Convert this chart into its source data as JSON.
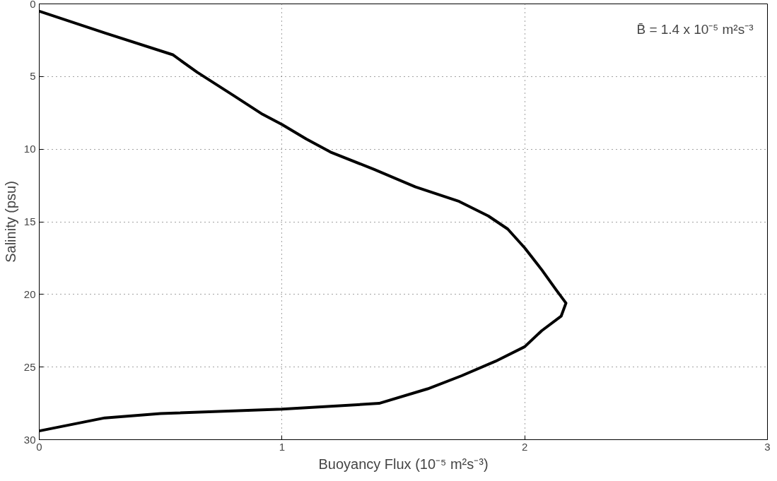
{
  "chart_data": {
    "type": "line",
    "xlabel": "Buoyancy Flux (10⁻⁵ m²s⁻³)",
    "ylabel": "Salinity (psu)",
    "annotations": [
      "B̄ = 1.4 x 10⁻⁵ m²s⁻³"
    ],
    "xlim": [
      0,
      3
    ],
    "ylim": [
      30,
      0
    ],
    "xticks": [
      0,
      1,
      2,
      3
    ],
    "yticks": [
      0,
      5,
      10,
      15,
      20,
      25,
      30
    ],
    "grid": true,
    "line_style": "solid",
    "marker": "none",
    "series": [
      {
        "color": "#000000",
        "x": [
          0,
          0.27,
          0.55,
          0.65,
          0.8,
          0.92,
          1.0,
          1.1,
          1.2,
          1.38,
          1.55,
          1.73,
          1.85,
          1.93,
          2.0,
          2.07,
          2.13,
          2.17,
          2.15,
          2.07,
          2.0,
          1.88,
          1.74,
          1.6,
          1.4,
          1.0,
          0.5,
          0.27,
          0
        ],
        "values": [
          0.5,
          2.0,
          3.5,
          4.7,
          6.3,
          7.6,
          8.3,
          9.3,
          10.2,
          11.4,
          12.6,
          13.6,
          14.6,
          15.5,
          16.8,
          18.3,
          19.7,
          20.6,
          21.5,
          22.5,
          23.6,
          24.6,
          25.6,
          26.5,
          27.5,
          27.9,
          28.2,
          28.5,
          29.4
        ]
      }
    ]
  }
}
